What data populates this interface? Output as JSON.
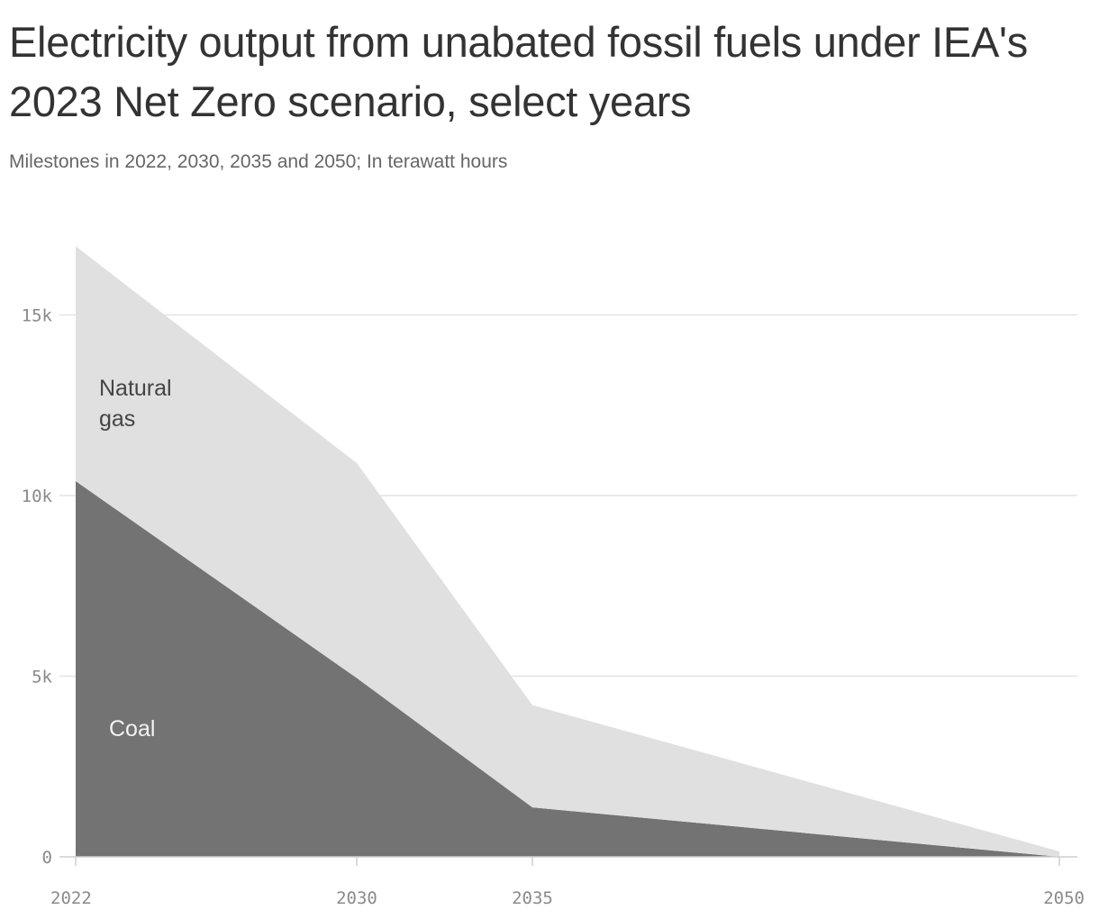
{
  "header": {
    "title": "Electricity output from unabated fossil fuels under IEA's 2023 Net Zero scenario, select years",
    "subtitle": "Milestones in 2022, 2030, 2035 and 2050; In terawatt hours"
  },
  "chart_data": {
    "type": "area",
    "stacked": true,
    "title": "Electricity output from unabated fossil fuels under IEA's 2023 Net Zero scenario, select years",
    "subtitle": "Milestones in 2022, 2030, 2035 and 2050; In terawatt hours",
    "xlabel": "",
    "ylabel": "",
    "x": [
      2022,
      2030,
      2035,
      2050
    ],
    "x_tick_labels": [
      "2022",
      "2030",
      "2035",
      "2050"
    ],
    "ylim": [
      0,
      17000
    ],
    "y_ticks": [
      0,
      5000,
      10000,
      15000
    ],
    "y_tick_labels": [
      "0",
      "5k",
      "10k",
      "15k"
    ],
    "grid": true,
    "series": [
      {
        "name": "Coal",
        "values": [
          10400,
          4950,
          1370,
          0
        ],
        "color": "#737373",
        "label_color": "#f2f2f2"
      },
      {
        "name": "Natural gas",
        "label_lines": [
          "Natural",
          "gas"
        ],
        "values": [
          6500,
          5950,
          2830,
          150
        ],
        "color": "#dfe0df",
        "label_color": "#444444"
      }
    ],
    "colors": {
      "gridline": "#e4e4e4",
      "axis": "#cfcfcf",
      "tick_label": "#8a8a8a"
    }
  }
}
